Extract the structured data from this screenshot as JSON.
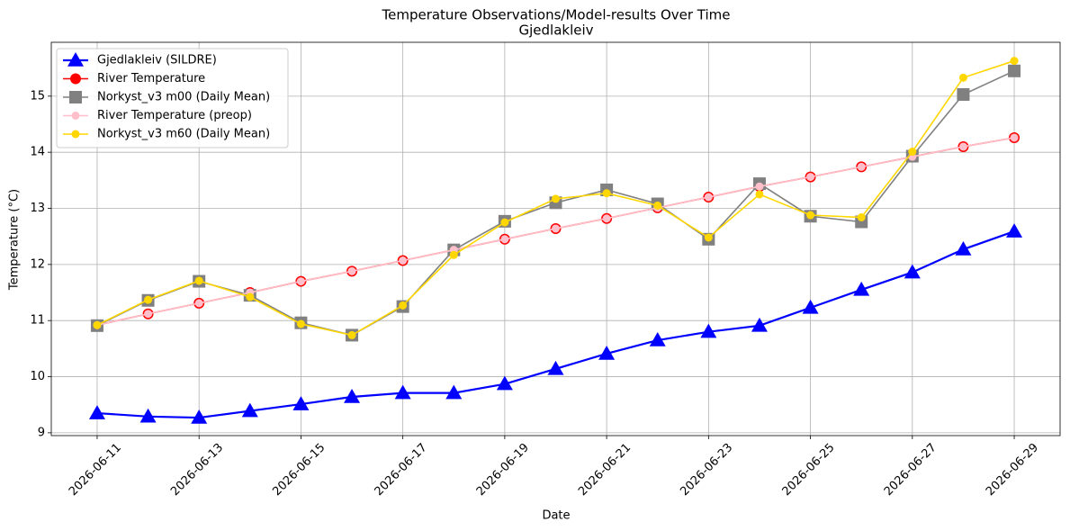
{
  "chart_data": {
    "type": "line",
    "title": "Temperature Observations/Model-results Over Time",
    "subtitle": "Gjedlakleiv",
    "x_label": "Date",
    "y_label": "Temperature (°C)",
    "x": [
      "2026-06-11",
      "2026-06-12",
      "2026-06-13",
      "2026-06-14",
      "2026-06-15",
      "2026-06-16",
      "2026-06-17",
      "2026-06-18",
      "2026-06-19",
      "2026-06-20",
      "2026-06-21",
      "2026-06-22",
      "2026-06-23",
      "2026-06-24",
      "2026-06-25",
      "2026-06-26",
      "2026-06-27",
      "2026-06-28",
      "2026-06-29"
    ],
    "xticks": [
      "2026-06-11",
      "2026-06-13",
      "2026-06-15",
      "2026-06-17",
      "2026-06-19",
      "2026-06-21",
      "2026-06-23",
      "2026-06-25",
      "2026-06-27",
      "2026-06-29"
    ],
    "ylim": [
      8.95,
      15.96
    ],
    "yticks": [
      9,
      10,
      11,
      12,
      13,
      14,
      15
    ],
    "grid": true,
    "legend": "upper left",
    "series": [
      {
        "name": "Gjedlakleiv (SILDRE)",
        "color": "#0000ff",
        "marker": "triangle",
        "values": [
          9.35,
          9.29,
          9.27,
          9.39,
          9.51,
          9.64,
          9.71,
          9.71,
          9.87,
          10.14,
          10.41,
          10.65,
          10.8,
          10.91,
          11.23,
          11.55,
          11.86,
          12.27,
          12.59
        ]
      },
      {
        "name": "River Temperature",
        "color": "#ff0000",
        "marker": "circle",
        "values": [
          10.92,
          11.12,
          11.31,
          11.5,
          11.7,
          11.88,
          12.07,
          12.26,
          12.45,
          12.64,
          12.82,
          13.01,
          13.2,
          13.39,
          13.56,
          13.74,
          13.92,
          14.1,
          14.26
        ]
      },
      {
        "name": "Norkyst_v3 m00 (Daily Mean)",
        "color": "#808080",
        "marker": "square",
        "values": [
          10.91,
          11.36,
          11.7,
          11.45,
          10.96,
          10.74,
          11.25,
          12.26,
          12.77,
          13.1,
          13.33,
          13.08,
          12.45,
          13.44,
          12.86,
          12.76,
          13.93,
          15.03,
          15.45
        ]
      },
      {
        "name": "River Temperature (preop)",
        "color": "#ffc0cb",
        "marker": "circle",
        "values": [
          10.92,
          11.12,
          11.31,
          11.5,
          11.7,
          11.88,
          12.07,
          12.26,
          12.45,
          12.64,
          12.82,
          13.01,
          13.2,
          13.39,
          13.56,
          13.74,
          13.92,
          14.1,
          14.26
        ]
      },
      {
        "name": "Norkyst_v3 m60 (Daily Mean)",
        "color": "#ffd700",
        "marker": "circle",
        "values": [
          10.92,
          11.37,
          11.71,
          11.42,
          10.94,
          10.74,
          11.27,
          12.17,
          12.75,
          13.17,
          13.27,
          13.05,
          12.48,
          13.25,
          12.88,
          12.84,
          14.01,
          15.33,
          15.63
        ]
      }
    ]
  }
}
